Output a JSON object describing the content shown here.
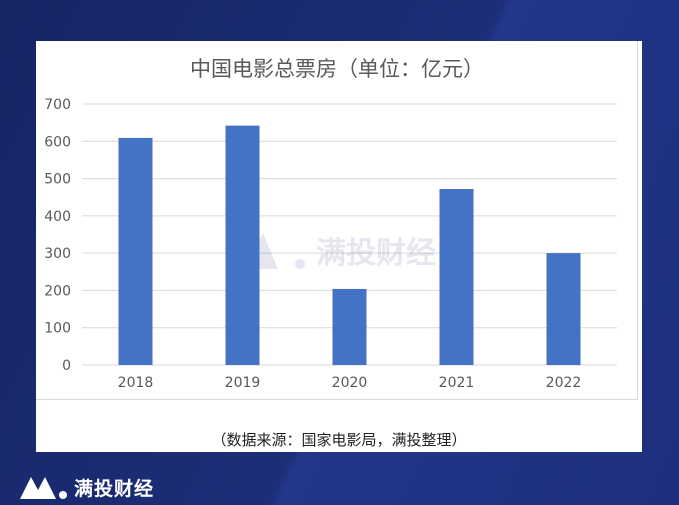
{
  "chart_data": {
    "type": "bar",
    "title": "中国电影总票房（单位：亿元）",
    "categories": [
      "2018",
      "2019",
      "2020",
      "2021",
      "2022"
    ],
    "values": [
      609,
      642,
      204,
      472,
      300
    ],
    "ylim": [
      0,
      700
    ],
    "yticks": [
      "0",
      "100",
      "200",
      "300",
      "400",
      "500",
      "600",
      "700"
    ],
    "grid": true,
    "bar_color": "#4472c4"
  },
  "source_note": "（数据来源：国家电影局，满投整理）",
  "brand": {
    "name": "满投财经"
  },
  "watermark": {
    "text": "满投财经"
  },
  "colors": {
    "background": "#1a2a6c",
    "grid": "#d9d9d9",
    "tick_text": "#595959"
  }
}
